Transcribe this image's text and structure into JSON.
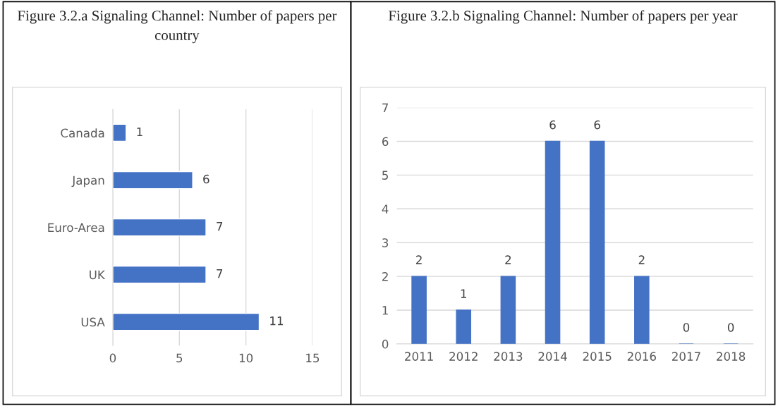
{
  "chart_data": [
    {
      "type": "bar",
      "title": "Figure 3.2.a Signaling Channel: Number of papers per country",
      "orientation": "horizontal",
      "categories": [
        "Canada",
        "Japan",
        "Euro-Area",
        "UK",
        "USA"
      ],
      "values": [
        1,
        6,
        7,
        7,
        11
      ],
      "color": "#4472c4",
      "xlim": [
        0,
        15
      ],
      "xticks": [
        0,
        5,
        10,
        15
      ],
      "grid": "x",
      "data_labels": true
    },
    {
      "type": "bar",
      "title": "Figure 3.2.b Signaling Channel: Number of papers per year",
      "categories": [
        "2011",
        "2012",
        "2013",
        "2014",
        "2015",
        "2016",
        "2017",
        "2018"
      ],
      "values": [
        2,
        1,
        2,
        6,
        6,
        2,
        0,
        0
      ],
      "color": "#4472c4",
      "ylim": [
        0,
        7
      ],
      "yticks": [
        0,
        1,
        2,
        3,
        4,
        5,
        6,
        7
      ],
      "grid": "y",
      "data_labels": true
    }
  ]
}
